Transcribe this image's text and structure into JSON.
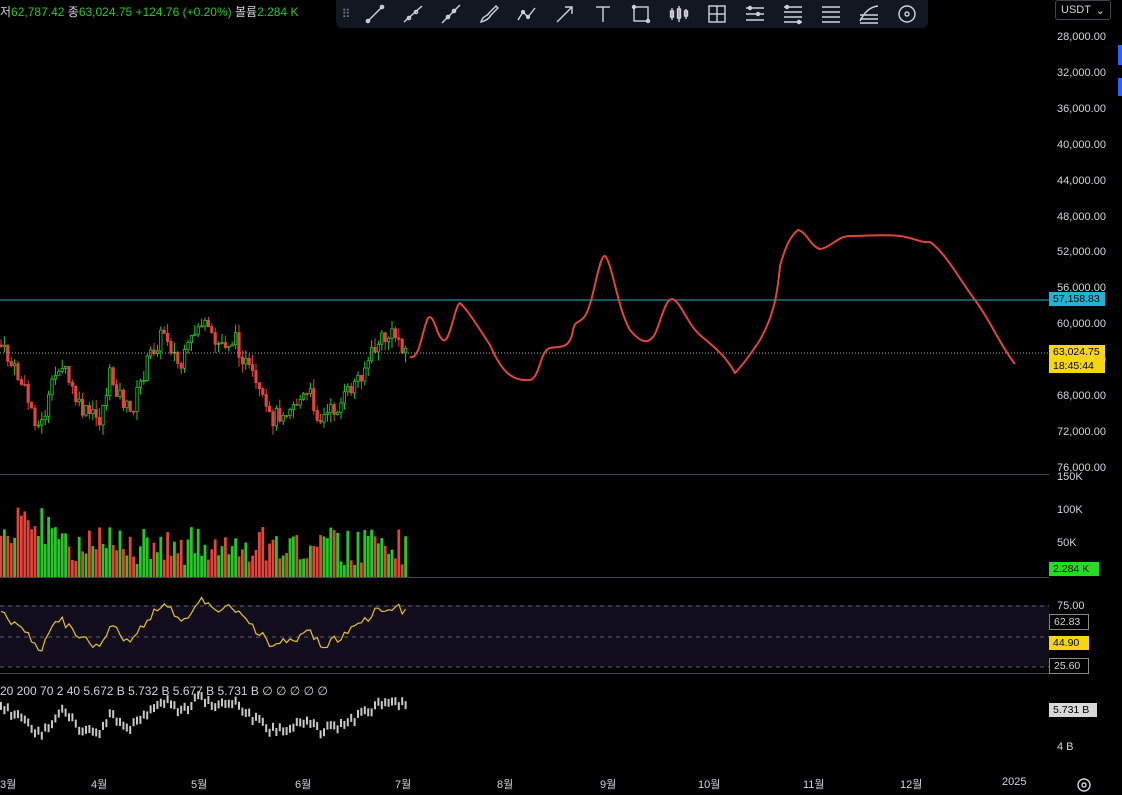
{
  "legend": {
    "low_label": "저",
    "low_value": "62,787.42",
    "close_label": "종",
    "close_value": "63,024.75",
    "change": "+124.76 (+0.20%)",
    "volume_label": "볼륨",
    "volume_value": "2.284 K"
  },
  "toolbar": {
    "grip": "⠿",
    "tools": [
      "trend-line",
      "ray",
      "extended-line",
      "brush",
      "path",
      "arrow",
      "text",
      "rectangle",
      "bars-pattern",
      "long-position",
      "date-range",
      "price-range",
      "fib-levels",
      "fib-channel",
      "circle"
    ]
  },
  "currency": {
    "value": "USDT",
    "arrow": "⌄"
  },
  "price_axis": {
    "ticks": [
      "28,000.00",
      "32,000.00",
      "36,000.00",
      "40,000.00",
      "44,000.00",
      "48,000.00",
      "52,000.00",
      "56,000.00",
      "60,000.00",
      "64,000.00",
      "68,000.00",
      "72,000.00",
      "76,000.00"
    ],
    "hline_tag": "57,158.83",
    "last_price_tag": "63,024.75",
    "countdown_tag": "18:45:44"
  },
  "volume_axis": {
    "ticks": [
      "150K",
      "100K",
      "50K"
    ],
    "last_tag": "2.284 K"
  },
  "rsi_axis": {
    "upper": "75.00",
    "mid_tag": "62.83",
    "mid_hidden": "50.00",
    "value_tag": "44.90",
    "lower": "25.60"
  },
  "oi": {
    "legend": "20 200 70 2 40 5.672 B 5.732 B 5.677 B 5.731 B ∅ ∅ ∅ ∅ ∅",
    "tag": "5.731 B",
    "axis_tick": "4 B"
  },
  "time_axis": {
    "labels": [
      {
        "text": "3월"
      },
      {
        "text": "4월"
      },
      {
        "text": "5월"
      },
      {
        "text": "6월"
      },
      {
        "text": "7월"
      },
      {
        "text": "8월"
      },
      {
        "text": "9월"
      },
      {
        "text": "10월"
      },
      {
        "text": "11월"
      },
      {
        "text": "12월"
      },
      {
        "text": "2025"
      }
    ]
  },
  "colors": {
    "up": "#26c826",
    "down": "#e0443a",
    "hline": "#1eb4d2",
    "projection": "#e0443a",
    "rsi_line": "#e8c41a",
    "tag_yellow": "#f5d60f",
    "volume_tag": "#22dd22",
    "oi_bars": "#c8c8c8"
  },
  "chart_data": {
    "type": "line",
    "title": "",
    "price_series_note": "",
    "y_inverted": true,
    "price_ylim": [
      28000,
      76000
    ],
    "horizontal_line": 57158.83,
    "last_price": 63024.75,
    "projection_path_prices": [
      {
        "x": "7월 초",
        "y": 63300
      },
      {
        "x": "7월 중",
        "y": 59600
      },
      {
        "x": "7월 말",
        "y": 61800
      },
      {
        "x": "8월 초",
        "y": 57100
      },
      {
        "x": "8월 말",
        "y": 65600
      },
      {
        "x": "9월 초",
        "y": 62500
      },
      {
        "x": "9월",
        "y": 53600
      },
      {
        "x": "9월 말",
        "y": 61600
      },
      {
        "x": "10월 초",
        "y": 57600
      },
      {
        "x": "10월 말",
        "y": 65600
      },
      {
        "x": "11월 초",
        "y": 50300
      },
      {
        "x": "11월 중",
        "y": 52100
      },
      {
        "x": "12월 초",
        "y": 51100
      },
      {
        "x": "12월 말",
        "y": 56800
      },
      {
        "x": "2025",
        "y": 63800
      }
    ],
    "rsi_levels": [
      75.0,
      50.0,
      25.6
    ],
    "rsi_last": 44.9
  }
}
